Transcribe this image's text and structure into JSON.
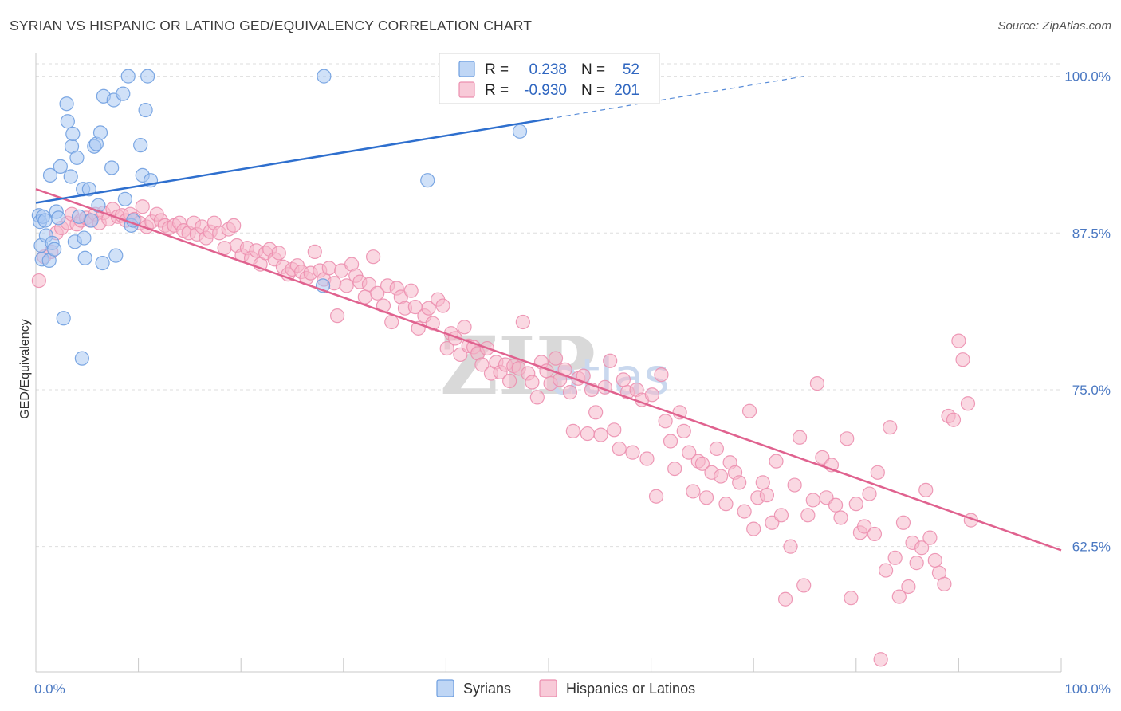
{
  "title": "SYRIAN VS HISPANIC OR LATINO GED/EQUIVALENCY CORRELATION CHART",
  "source": "Source: ZipAtlas.com",
  "watermark": {
    "zip": "ZIP",
    "atlas": "atlas"
  },
  "colors": {
    "syrians_fill": "#a9c8f2",
    "syrians_stroke": "#6f9fe0",
    "syrians_line": "#2e6fce",
    "hispanic_fill": "#f5b8cb",
    "hispanic_stroke": "#ec8faf",
    "hispanic_line": "#e0628f",
    "tick_label": "#4a78c2",
    "grid": "#dedede"
  },
  "legend": {
    "rows": [
      {
        "r_label": "R =",
        "r_value": "0.238",
        "n_label": "N =",
        "n_value": "52",
        "series": "syrians"
      },
      {
        "r_label": "R =",
        "r_value": "-0.930",
        "n_label": "N =",
        "n_value": "201",
        "series": "hispanic"
      }
    ]
  },
  "bottom_legend": [
    {
      "label": "Syrians",
      "series": "syrians"
    },
    {
      "label": "Hispanics or Latinos",
      "series": "hispanic"
    }
  ],
  "chart_data": {
    "type": "scatter",
    "title": "SYRIAN VS HISPANIC OR LATINO GED/EQUIVALENCY CORRELATION CHART",
    "xlabel": "",
    "ylabel": "GED/Equivalency",
    "xlim": [
      0,
      100
    ],
    "ylim": [
      52.5,
      101.5
    ],
    "x_tick_labels": [
      {
        "value": 0,
        "label": "0.0%"
      },
      {
        "value": 100,
        "label": "100.0%"
      }
    ],
    "y_tick_labels": [
      {
        "value": 100,
        "label": "100.0%"
      },
      {
        "value": 87.5,
        "label": "87.5%"
      },
      {
        "value": 75,
        "label": "75.0%"
      },
      {
        "value": 62.5,
        "label": "62.5%"
      }
    ],
    "grid": true,
    "legend_position": "top-center",
    "series": [
      {
        "name": "Syrians",
        "key": "syrians",
        "r": 0.238,
        "n": 52,
        "trend": {
          "x0": 0,
          "y0": 89.9,
          "x1": 50,
          "y1": 96.6,
          "dashed_to_x": 75,
          "dashed_to_y": 100
        },
        "points": [
          [
            0.3,
            88.9
          ],
          [
            0.4,
            88.4
          ],
          [
            0.5,
            86.5
          ],
          [
            0.6,
            85.4
          ],
          [
            0.7,
            88.8
          ],
          [
            0.9,
            88.5
          ],
          [
            1.0,
            87.3
          ],
          [
            1.3,
            85.3
          ],
          [
            1.4,
            92.1
          ],
          [
            1.6,
            86.7
          ],
          [
            1.8,
            86.2
          ],
          [
            2.0,
            89.2
          ],
          [
            2.2,
            88.7
          ],
          [
            2.4,
            92.8
          ],
          [
            2.7,
            80.7
          ],
          [
            3.0,
            97.8
          ],
          [
            3.1,
            96.4
          ],
          [
            3.4,
            92.0
          ],
          [
            3.5,
            94.4
          ],
          [
            3.6,
            95.4
          ],
          [
            3.8,
            86.8
          ],
          [
            4.0,
            93.5
          ],
          [
            4.2,
            88.8
          ],
          [
            4.5,
            77.5
          ],
          [
            4.6,
            91.0
          ],
          [
            4.7,
            87.1
          ],
          [
            4.8,
            85.5
          ],
          [
            5.2,
            91.0
          ],
          [
            5.4,
            88.5
          ],
          [
            5.7,
            94.4
          ],
          [
            5.9,
            94.6
          ],
          [
            6.1,
            89.7
          ],
          [
            6.3,
            95.5
          ],
          [
            6.5,
            85.1
          ],
          [
            6.6,
            98.4
          ],
          [
            7.4,
            92.7
          ],
          [
            7.6,
            98.1
          ],
          [
            7.8,
            85.7
          ],
          [
            8.5,
            98.6
          ],
          [
            8.7,
            90.2
          ],
          [
            9.0,
            100.0
          ],
          [
            9.3,
            88.1
          ],
          [
            9.5,
            88.5
          ],
          [
            10.2,
            94.5
          ],
          [
            10.4,
            92.1
          ],
          [
            10.7,
            97.3
          ],
          [
            10.9,
            100.0
          ],
          [
            11.2,
            91.7
          ],
          [
            28.0,
            83.3
          ],
          [
            28.1,
            100.0
          ],
          [
            38.2,
            91.7
          ],
          [
            47.2,
            95.6
          ]
        ]
      },
      {
        "name": "Hispanics or Latinos",
        "key": "hispanic",
        "r": -0.93,
        "n": 201,
        "trend": {
          "x0": 0,
          "y0": 91.0,
          "x1": 100,
          "y1": 62.2
        },
        "points": [
          [
            0.3,
            83.7
          ],
          [
            0.8,
            85.6
          ],
          [
            1.5,
            86.0
          ],
          [
            2.0,
            87.5
          ],
          [
            2.5,
            87.9
          ],
          [
            3.1,
            88.3
          ],
          [
            3.5,
            89.0
          ],
          [
            4.0,
            88.2
          ],
          [
            4.4,
            88.5
          ],
          [
            4.9,
            88.7
          ],
          [
            5.3,
            88.5
          ],
          [
            5.8,
            89.0
          ],
          [
            6.2,
            88.3
          ],
          [
            6.6,
            89.1
          ],
          [
            7.1,
            88.6
          ],
          [
            7.5,
            89.4
          ],
          [
            8.0,
            88.8
          ],
          [
            8.4,
            88.9
          ],
          [
            8.8,
            88.5
          ],
          [
            9.2,
            89.0
          ],
          [
            9.6,
            88.6
          ],
          [
            10.1,
            88.3
          ],
          [
            10.4,
            89.6
          ],
          [
            10.8,
            88.0
          ],
          [
            11.3,
            88.4
          ],
          [
            11.8,
            89.0
          ],
          [
            12.2,
            88.5
          ],
          [
            12.6,
            88.1
          ],
          [
            13.0,
            87.9
          ],
          [
            13.5,
            88.1
          ],
          [
            14.0,
            88.3
          ],
          [
            14.4,
            87.7
          ],
          [
            14.9,
            87.5
          ],
          [
            15.4,
            88.3
          ],
          [
            15.7,
            87.4
          ],
          [
            16.2,
            88.0
          ],
          [
            16.6,
            87.1
          ],
          [
            17.0,
            87.6
          ],
          [
            17.4,
            88.3
          ],
          [
            17.9,
            87.5
          ],
          [
            18.4,
            86.3
          ],
          [
            18.8,
            87.8
          ],
          [
            19.3,
            88.1
          ],
          [
            19.6,
            86.5
          ],
          [
            20.1,
            85.7
          ],
          [
            20.6,
            86.3
          ],
          [
            21.0,
            85.5
          ],
          [
            21.5,
            86.1
          ],
          [
            21.9,
            85.0
          ],
          [
            22.4,
            85.9
          ],
          [
            22.8,
            86.2
          ],
          [
            23.3,
            85.4
          ],
          [
            23.7,
            85.9
          ],
          [
            24.1,
            84.8
          ],
          [
            24.6,
            84.2
          ],
          [
            25.0,
            84.6
          ],
          [
            25.5,
            84.9
          ],
          [
            25.9,
            84.4
          ],
          [
            26.4,
            83.9
          ],
          [
            26.8,
            84.3
          ],
          [
            27.2,
            86.0
          ],
          [
            27.7,
            84.5
          ],
          [
            28.1,
            83.8
          ],
          [
            28.6,
            84.7
          ],
          [
            29.1,
            83.5
          ],
          [
            29.4,
            80.9
          ],
          [
            29.8,
            84.5
          ],
          [
            30.3,
            83.3
          ],
          [
            30.8,
            85.0
          ],
          [
            31.2,
            84.1
          ],
          [
            31.6,
            83.6
          ],
          [
            32.1,
            82.4
          ],
          [
            32.5,
            83.4
          ],
          [
            32.9,
            85.6
          ],
          [
            33.3,
            82.7
          ],
          [
            33.9,
            81.7
          ],
          [
            34.3,
            83.3
          ],
          [
            34.7,
            80.4
          ],
          [
            35.2,
            83.1
          ],
          [
            35.6,
            82.4
          ],
          [
            36.0,
            81.5
          ],
          [
            36.6,
            82.9
          ],
          [
            37.0,
            81.6
          ],
          [
            37.3,
            79.9
          ],
          [
            37.9,
            80.9
          ],
          [
            38.3,
            81.5
          ],
          [
            38.7,
            80.3
          ],
          [
            39.2,
            82.2
          ],
          [
            39.7,
            81.7
          ],
          [
            40.1,
            78.3
          ],
          [
            40.5,
            79.5
          ],
          [
            40.9,
            79.1
          ],
          [
            41.4,
            77.8
          ],
          [
            41.8,
            80.0
          ],
          [
            42.2,
            78.5
          ],
          [
            42.7,
            78.4
          ],
          [
            43.1,
            77.9
          ],
          [
            43.5,
            77.0
          ],
          [
            44.0,
            78.3
          ],
          [
            44.4,
            76.3
          ],
          [
            44.9,
            77.2
          ],
          [
            45.3,
            76.4
          ],
          [
            45.8,
            77.0
          ],
          [
            46.2,
            75.7
          ],
          [
            46.6,
            76.9
          ],
          [
            47.1,
            76.7
          ],
          [
            47.5,
            80.4
          ],
          [
            48.0,
            76.3
          ],
          [
            48.4,
            75.6
          ],
          [
            48.9,
            74.4
          ],
          [
            49.3,
            77.2
          ],
          [
            49.8,
            76.5
          ],
          [
            50.2,
            75.5
          ],
          [
            50.7,
            77.5
          ],
          [
            51.1,
            75.8
          ],
          [
            51.6,
            76.6
          ],
          [
            52.1,
            74.8
          ],
          [
            52.4,
            71.7
          ],
          [
            52.9,
            75.9
          ],
          [
            53.4,
            76.1
          ],
          [
            53.8,
            71.5
          ],
          [
            54.2,
            75.0
          ],
          [
            54.6,
            73.2
          ],
          [
            55.1,
            71.4
          ],
          [
            55.5,
            75.2
          ],
          [
            56.0,
            77.3
          ],
          [
            56.4,
            71.8
          ],
          [
            56.9,
            70.3
          ],
          [
            57.3,
            75.8
          ],
          [
            57.7,
            74.8
          ],
          [
            58.2,
            70.0
          ],
          [
            58.6,
            75.0
          ],
          [
            59.1,
            74.2
          ],
          [
            59.6,
            69.5
          ],
          [
            60.1,
            74.6
          ],
          [
            60.5,
            66.5
          ],
          [
            61.0,
            76.2
          ],
          [
            61.4,
            72.5
          ],
          [
            61.9,
            70.9
          ],
          [
            62.3,
            68.7
          ],
          [
            62.8,
            73.2
          ],
          [
            63.2,
            71.7
          ],
          [
            63.7,
            70.0
          ],
          [
            64.1,
            66.9
          ],
          [
            64.6,
            69.3
          ],
          [
            65.0,
            69.1
          ],
          [
            65.4,
            66.4
          ],
          [
            65.9,
            68.4
          ],
          [
            66.4,
            70.3
          ],
          [
            66.8,
            68.1
          ],
          [
            67.3,
            65.9
          ],
          [
            67.7,
            69.2
          ],
          [
            68.2,
            68.4
          ],
          [
            68.6,
            67.6
          ],
          [
            69.1,
            65.3
          ],
          [
            69.6,
            73.3
          ],
          [
            70.0,
            63.9
          ],
          [
            70.4,
            66.4
          ],
          [
            70.9,
            67.6
          ],
          [
            71.3,
            66.6
          ],
          [
            71.8,
            64.4
          ],
          [
            72.2,
            69.3
          ],
          [
            72.7,
            65.0
          ],
          [
            73.1,
            58.3
          ],
          [
            73.6,
            62.5
          ],
          [
            74.0,
            67.4
          ],
          [
            74.5,
            71.2
          ],
          [
            74.9,
            59.4
          ],
          [
            75.3,
            65.0
          ],
          [
            75.8,
            66.2
          ],
          [
            76.2,
            75.5
          ],
          [
            76.7,
            69.6
          ],
          [
            77.1,
            66.4
          ],
          [
            77.6,
            69.0
          ],
          [
            78.0,
            65.8
          ],
          [
            78.5,
            64.8
          ],
          [
            79.1,
            71.1
          ],
          [
            79.5,
            58.4
          ],
          [
            80.0,
            65.9
          ],
          [
            80.4,
            63.6
          ],
          [
            80.8,
            64.1
          ],
          [
            81.3,
            66.7
          ],
          [
            81.8,
            63.5
          ],
          [
            82.1,
            68.4
          ],
          [
            82.4,
            53.5
          ],
          [
            82.9,
            60.6
          ],
          [
            83.3,
            72.0
          ],
          [
            83.8,
            61.6
          ],
          [
            84.2,
            58.5
          ],
          [
            84.6,
            64.4
          ],
          [
            85.1,
            59.3
          ],
          [
            85.5,
            62.8
          ],
          [
            85.9,
            61.2
          ],
          [
            86.4,
            62.4
          ],
          [
            86.8,
            67.0
          ],
          [
            87.2,
            63.2
          ],
          [
            87.7,
            61.4
          ],
          [
            88.1,
            60.4
          ],
          [
            88.6,
            59.5
          ],
          [
            89.0,
            72.9
          ],
          [
            89.5,
            72.6
          ],
          [
            90.0,
            78.9
          ],
          [
            90.4,
            77.4
          ],
          [
            90.9,
            73.9
          ],
          [
            91.2,
            64.6
          ]
        ]
      }
    ]
  }
}
